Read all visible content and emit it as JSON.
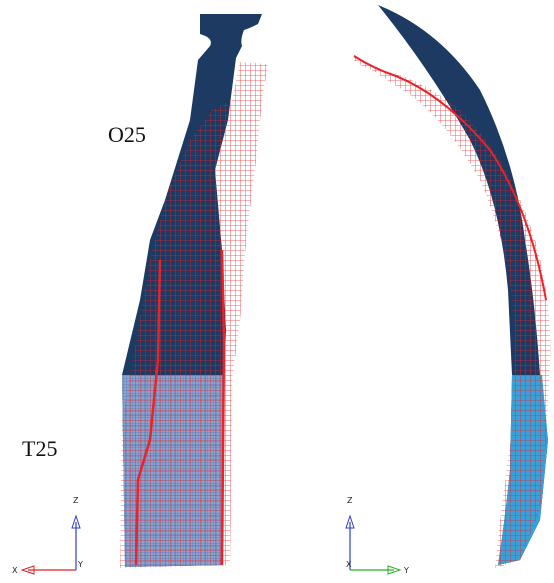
{
  "labels": {
    "top": "O25",
    "bottom": "T25"
  },
  "triads": [
    {
      "z": "Z",
      "x": "X",
      "y": "Y"
    },
    {
      "z": "Z",
      "x": "X",
      "y": "Y"
    }
  ]
}
